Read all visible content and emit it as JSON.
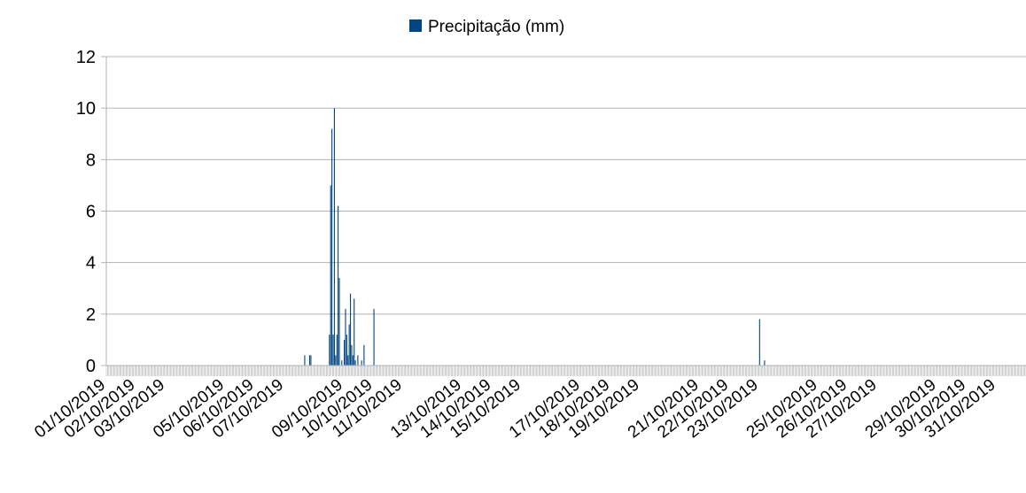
{
  "chart_data": {
    "type": "bar",
    "legend": {
      "label": "Precipitação (mm)",
      "position": "top",
      "color": "#004586"
    },
    "series": [
      {
        "name": "Precipitação (mm)",
        "color": "#004586",
        "points": [
          {
            "x": "07/10/2019 16:00",
            "y": 0.4
          },
          {
            "x": "07/10/2019 20:00",
            "y": 0.4
          },
          {
            "x": "07/10/2019 21:00",
            "y": 0.4
          },
          {
            "x": "08/10/2019 12:00",
            "y": 1.2
          },
          {
            "x": "08/10/2019 13:00",
            "y": 7.0
          },
          {
            "x": "08/10/2019 14:00",
            "y": 9.2
          },
          {
            "x": "08/10/2019 15:00",
            "y": 1.2
          },
          {
            "x": "08/10/2019 16:00",
            "y": 10.0
          },
          {
            "x": "08/10/2019 17:00",
            "y": 0.4
          },
          {
            "x": "08/10/2019 18:00",
            "y": 1.2
          },
          {
            "x": "08/10/2019 19:00",
            "y": 6.2
          },
          {
            "x": "08/10/2019 20:00",
            "y": 3.4
          },
          {
            "x": "08/10/2019 22:00",
            "y": 0.2
          },
          {
            "x": "09/10/2019 00:00",
            "y": 1.0
          },
          {
            "x": "09/10/2019 01:00",
            "y": 2.2
          },
          {
            "x": "09/10/2019 02:00",
            "y": 1.2
          },
          {
            "x": "09/10/2019 03:00",
            "y": 0.4
          },
          {
            "x": "09/10/2019 04:00",
            "y": 1.6
          },
          {
            "x": "09/10/2019 05:00",
            "y": 2.8
          },
          {
            "x": "09/10/2019 06:00",
            "y": 0.8
          },
          {
            "x": "09/10/2019 07:00",
            "y": 0.4
          },
          {
            "x": "09/10/2019 08:00",
            "y": 2.6
          },
          {
            "x": "09/10/2019 09:00",
            "y": 0.2
          },
          {
            "x": "09/10/2019 11:00",
            "y": 0.4
          },
          {
            "x": "09/10/2019 14:00",
            "y": 0.2
          },
          {
            "x": "09/10/2019 16:00",
            "y": 0.8
          },
          {
            "x": "10/10/2019 00:00",
            "y": 2.2
          },
          {
            "x": "23/10/2019 00:00",
            "y": 1.8
          },
          {
            "x": "23/10/2019 04:00",
            "y": 0.2
          }
        ]
      }
    ],
    "y_axis": {
      "min": 0,
      "max": 12,
      "ticks": [
        0,
        2,
        4,
        6,
        8,
        10,
        12
      ]
    },
    "x_axis": {
      "start": "01/10/2019 00:00",
      "end": "31/10/2019 23:00",
      "interval": "1 hour",
      "tick_labels": [
        "01/10/2019",
        "02/10/2019",
        "03/10/2019",
        "05/10/2019",
        "06/10/2019",
        "07/10/2019",
        "09/10/2019",
        "10/10/2019",
        "11/10/2019",
        "13/10/2019",
        "14/10/2019",
        "15/10/2019",
        "17/10/2019",
        "18/10/2019",
        "19/10/2019",
        "21/10/2019",
        "22/10/2019",
        "23/10/2019",
        "25/10/2019",
        "26/10/2019",
        "27/10/2019",
        "29/10/2019",
        "30/10/2019",
        "31/10/2019"
      ]
    },
    "grid": {
      "horizontal": true,
      "vertical": false,
      "color": "#b3b3b3"
    }
  }
}
